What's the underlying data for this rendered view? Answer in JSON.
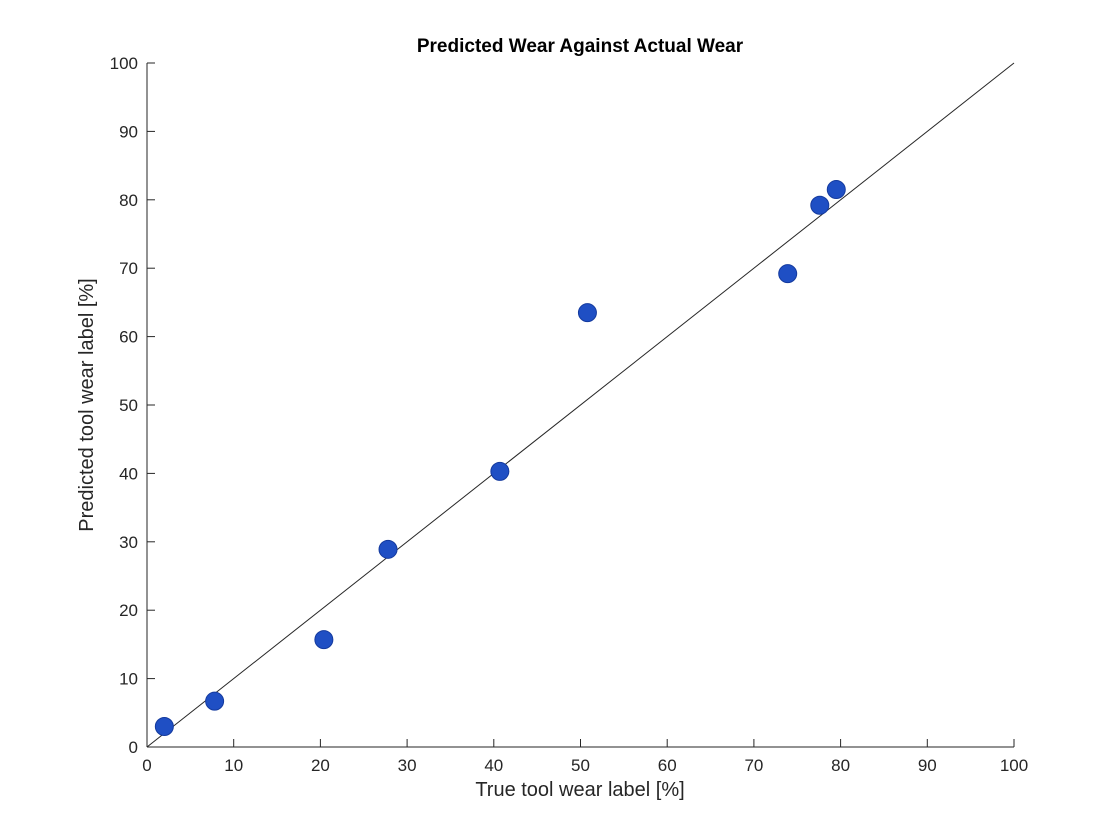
{
  "chart_data": {
    "type": "scatter",
    "title": "Predicted Wear Against Actual Wear",
    "xlabel": "True tool wear label [%]",
    "ylabel": "Predicted tool wear label [%]",
    "xlim": [
      0,
      100
    ],
    "ylim": [
      0,
      100
    ],
    "xticks": [
      "0",
      "10",
      "20",
      "30",
      "40",
      "50",
      "60",
      "70",
      "80",
      "90",
      "100"
    ],
    "yticks": [
      "0",
      "10",
      "20",
      "30",
      "40",
      "50",
      "60",
      "70",
      "80",
      "90",
      "100"
    ],
    "grid": false,
    "legend": "none",
    "reference_line": {
      "from": [
        0,
        0
      ],
      "to": [
        100,
        100
      ],
      "color": "#262626"
    },
    "series": [
      {
        "color": "#1f4fc4",
        "x": [
          2.0,
          7.8,
          20.4,
          27.8,
          40.7,
          50.8,
          73.9,
          77.6,
          79.5
        ],
        "y": [
          3.0,
          6.7,
          15.7,
          28.9,
          40.3,
          63.5,
          69.2,
          79.2,
          81.5
        ]
      }
    ]
  }
}
